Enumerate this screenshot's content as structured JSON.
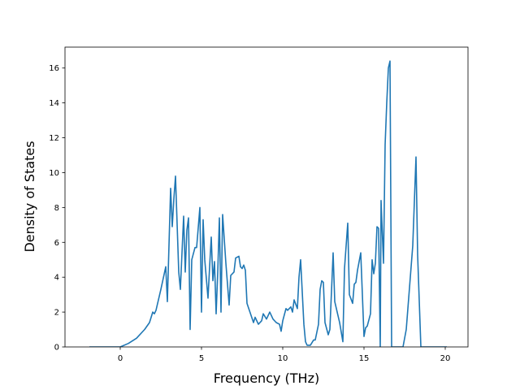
{
  "chart_data": {
    "type": "line",
    "title": "",
    "xlabel": "Frequency (THz)",
    "ylabel": "Density of States",
    "xlim": [
      -3.4,
      21.4
    ],
    "ylim": [
      0,
      17.2
    ],
    "xticks": [
      0,
      5,
      10,
      15,
      20
    ],
    "yticks": [
      0,
      2,
      4,
      6,
      8,
      10,
      12,
      14,
      16
    ],
    "xtick_labels": [
      "0",
      "5",
      "10",
      "15",
      "20"
    ],
    "ytick_labels": [
      "0",
      "2",
      "4",
      "6",
      "8",
      "10",
      "12",
      "14",
      "16"
    ],
    "grid": false,
    "legend": "none",
    "series": [
      {
        "color": "#1f77b4",
        "x": [
          -1.9,
          -1.0,
          0.0,
          0.5,
          1.0,
          1.5,
          1.8,
          2.0,
          2.1,
          2.2,
          2.5,
          2.8,
          2.9,
          3.1,
          3.2,
          3.3,
          3.4,
          3.6,
          3.7,
          3.9,
          4.0,
          4.1,
          4.2,
          4.3,
          4.4,
          4.6,
          4.7,
          4.9,
          5.0,
          5.1,
          5.2,
          5.4,
          5.5,
          5.6,
          5.7,
          5.8,
          5.9,
          6.0,
          6.1,
          6.2,
          6.3,
          6.5,
          6.7,
          6.8,
          7.0,
          7.1,
          7.3,
          7.4,
          7.5,
          7.6,
          7.7,
          7.8,
          8.2,
          8.3,
          8.5,
          8.7,
          8.8,
          9.0,
          9.2,
          9.4,
          9.6,
          9.8,
          9.9,
          10.0,
          10.2,
          10.3,
          10.5,
          10.6,
          10.7,
          10.9,
          11.0,
          11.1,
          11.3,
          11.4,
          11.5,
          11.7,
          11.9,
          12.0,
          12.2,
          12.3,
          12.4,
          12.5,
          12.6,
          12.8,
          12.9,
          13.1,
          13.2,
          13.4,
          13.5,
          13.7,
          13.8,
          14.0,
          14.1,
          14.3,
          14.4,
          14.5,
          14.6,
          14.8,
          15.0,
          15.1,
          15.2,
          15.4,
          15.5,
          15.6,
          15.7,
          15.8,
          15.9,
          16.0,
          16.05,
          16.2,
          16.3,
          16.4,
          16.5,
          16.6,
          16.7,
          16.75,
          17.4,
          17.6,
          17.8,
          18.0,
          18.2,
          18.3,
          18.5,
          18.6,
          19.0,
          19.5,
          20.1
        ],
        "y": [
          0.0,
          0.0,
          0.0,
          0.2,
          0.5,
          1.0,
          1.4,
          2.0,
          1.9,
          2.1,
          3.3,
          4.6,
          2.6,
          9.1,
          6.9,
          8.5,
          9.8,
          4.3,
          3.3,
          7.5,
          4.3,
          6.7,
          7.4,
          1.0,
          5.0,
          5.7,
          5.7,
          8.0,
          2.0,
          7.3,
          5.0,
          2.8,
          4.6,
          6.3,
          3.8,
          4.9,
          1.9,
          4.3,
          7.4,
          2.0,
          7.6,
          4.8,
          2.4,
          4.1,
          4.3,
          5.1,
          5.2,
          4.6,
          4.5,
          4.7,
          4.4,
          2.5,
          1.4,
          1.7,
          1.3,
          1.5,
          1.9,
          1.6,
          2.0,
          1.6,
          1.4,
          1.3,
          0.9,
          1.5,
          2.2,
          2.1,
          2.3,
          2.0,
          2.7,
          2.2,
          4.0,
          5.0,
          1.3,
          0.3,
          0.1,
          0.1,
          0.4,
          0.4,
          1.3,
          3.3,
          3.8,
          3.7,
          1.4,
          0.7,
          1.0,
          5.4,
          2.6,
          1.8,
          1.4,
          0.3,
          4.5,
          7.1,
          3.0,
          2.5,
          3.6,
          3.7,
          4.4,
          5.4,
          0.6,
          1.1,
          1.2,
          1.9,
          5.0,
          4.2,
          4.8,
          6.9,
          6.8,
          0.0,
          8.4,
          4.8,
          11.6,
          14.0,
          16.0,
          16.4,
          0.0,
          0.0,
          0.0,
          1.0,
          3.4,
          5.8,
          10.9,
          5.3,
          0.0,
          0.0,
          0.0,
          0.0,
          0.0
        ]
      }
    ]
  }
}
